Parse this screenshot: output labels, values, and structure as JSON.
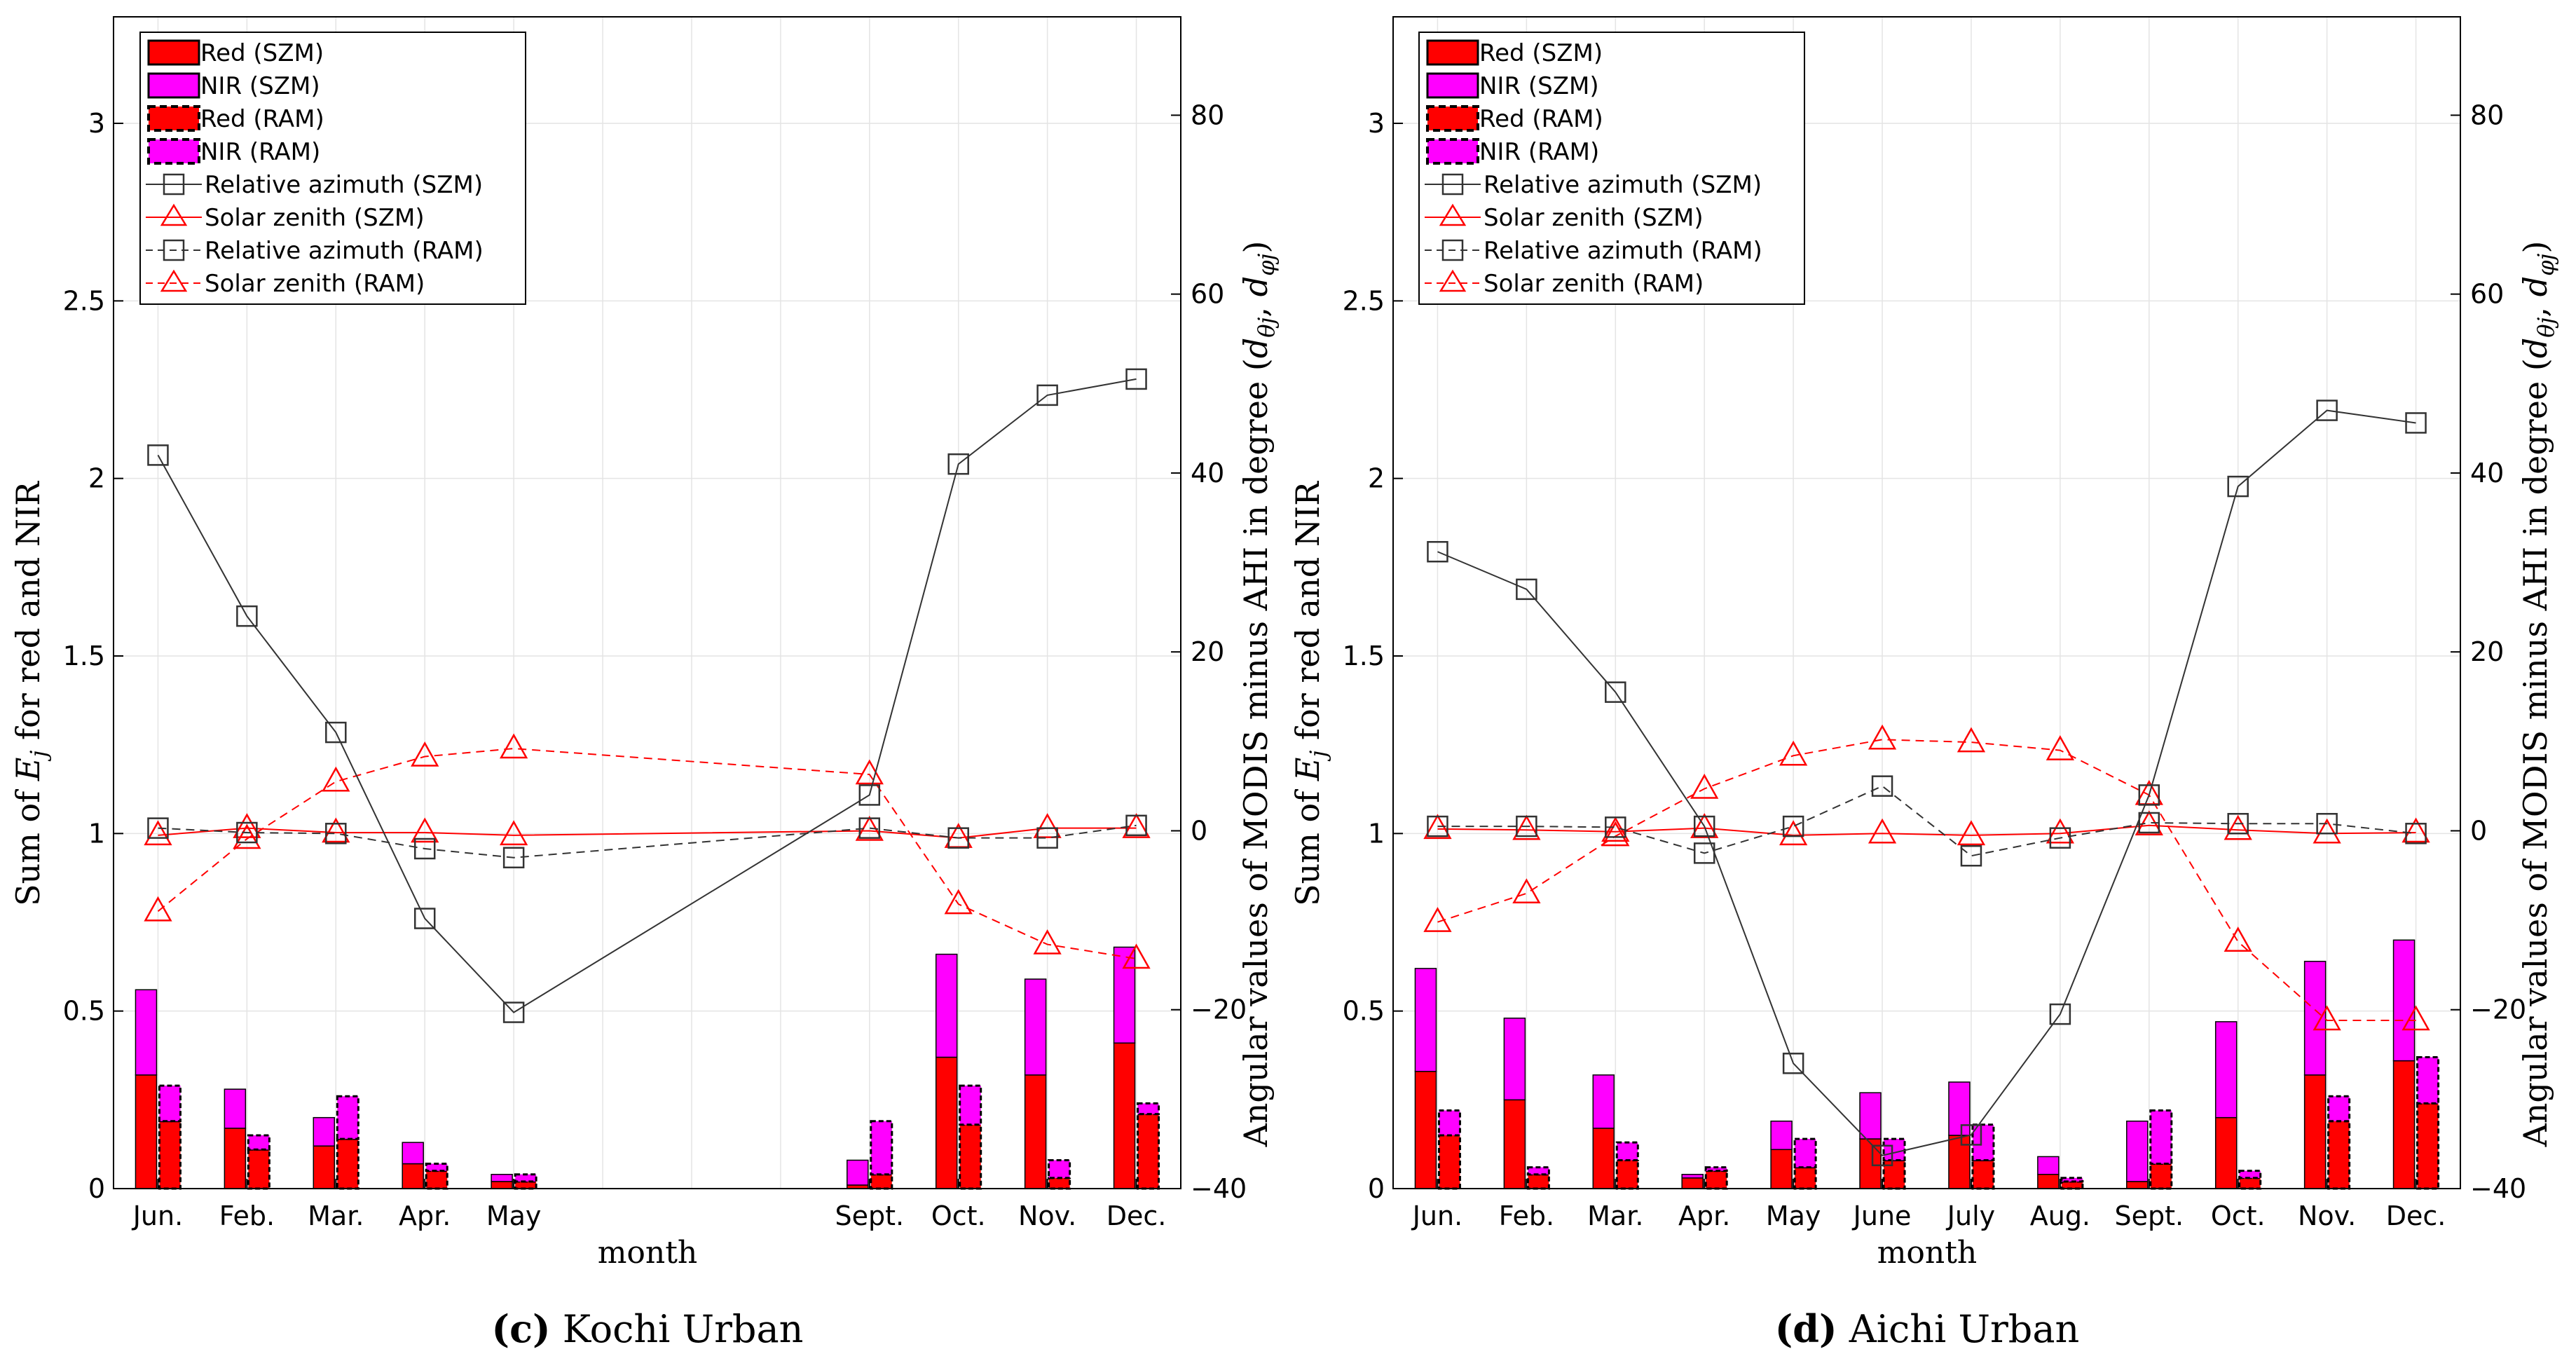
{
  "chart_data": [
    {
      "type": "bar",
      "panel": "left",
      "caption_letter": "(c)",
      "caption_text": "Kochi Urban",
      "xlabel": "month",
      "ylabel_left": "Sum of E_j for red and NIR",
      "ylabel_right": "Angular values of MODIS minus AHI in degree (d_θj, d_φj)",
      "ylim_left": [
        0,
        3.3
      ],
      "ylim_right": [
        -40,
        91
      ],
      "yticks_left": [
        "0",
        "0.5",
        "1",
        "1.5",
        "2",
        "2.5",
        "3"
      ],
      "yticks_right": [
        "-40",
        "-20",
        "0",
        "20",
        "40",
        "60",
        "80"
      ],
      "grid": true,
      "legend_position": "top-left",
      "slots": 12,
      "categories": [
        "Jun.",
        "Feb.",
        "Mar.",
        "Apr.",
        "May",
        "Sept.",
        "Oct.",
        "Nov.",
        "Dec."
      ],
      "category_slots": [
        0,
        1,
        2,
        3,
        4,
        8,
        9,
        10,
        11
      ],
      "series": [
        {
          "name": "Red (SZM)",
          "values": [
            0.32,
            0.17,
            0.12,
            0.07,
            0.02,
            0.01,
            0.37,
            0.32,
            0.41
          ]
        },
        {
          "name": "NIR (SZM)",
          "values": [
            0.24,
            0.11,
            0.08,
            0.06,
            0.02,
            0.07,
            0.29,
            0.27,
            0.27
          ]
        },
        {
          "name": "Red (RAM)",
          "values": [
            0.19,
            0.11,
            0.14,
            0.05,
            0.02,
            0.04,
            0.18,
            0.03,
            0.21
          ]
        },
        {
          "name": "NIR (RAM)",
          "values": [
            0.1,
            0.04,
            0.12,
            0.02,
            0.02,
            0.15,
            0.11,
            0.05,
            0.03
          ]
        }
      ],
      "lines": [
        {
          "name": "Relative azimuth (SZM)",
          "values": [
            42,
            24,
            11,
            -9.8,
            -20.3,
            4,
            41,
            48.7,
            50.5
          ]
        },
        {
          "name": "Solar zenith (SZM)",
          "values": [
            -0.5,
            0.3,
            -0.2,
            -0.2,
            -0.5,
            0,
            -0.8,
            0.3,
            0.3
          ]
        },
        {
          "name": "Relative azimuth (RAM)",
          "values": [
            0.3,
            -0.2,
            -0.3,
            -2.0,
            -3.0,
            0.3,
            -0.8,
            -0.8,
            0.6
          ]
        },
        {
          "name": "Solar zenith (RAM)",
          "values": [
            -9.0,
            -0.9,
            5.5,
            8.3,
            9.2,
            6.3,
            -8.2,
            -12.7,
            -14.3
          ]
        }
      ]
    },
    {
      "type": "bar",
      "panel": "right",
      "caption_letter": "(d)",
      "caption_text": "Aichi Urban",
      "xlabel": "month",
      "ylabel_left": "Sum of E_j for red and NIR",
      "ylabel_right": "Angular values of MODIS minus AHI in degree (d_θj, d_φj)",
      "ylim_left": [
        0,
        3.3
      ],
      "ylim_right": [
        -40,
        91
      ],
      "yticks_left": [
        "0",
        "0.5",
        "1",
        "1.5",
        "2",
        "2.5",
        "3"
      ],
      "yticks_right": [
        "-40",
        "-20",
        "0",
        "20",
        "40",
        "60",
        "80"
      ],
      "grid": true,
      "legend_position": "top-left",
      "slots": 12,
      "categories": [
        "Jun.",
        "Feb.",
        "Mar.",
        "Apr.",
        "May",
        "June",
        "July",
        "Aug.",
        "Sept.",
        "Oct.",
        "Nov.",
        "Dec."
      ],
      "category_slots": [
        0,
        1,
        2,
        3,
        4,
        5,
        6,
        7,
        8,
        9,
        10,
        11
      ],
      "series": [
        {
          "name": "Red (SZM)",
          "values": [
            0.33,
            0.25,
            0.17,
            0.03,
            0.11,
            0.14,
            0.15,
            0.04,
            0.02,
            0.2,
            0.32,
            0.36
          ]
        },
        {
          "name": "NIR (SZM)",
          "values": [
            0.29,
            0.23,
            0.15,
            0.01,
            0.08,
            0.13,
            0.15,
            0.05,
            0.17,
            0.27,
            0.32,
            0.34
          ]
        },
        {
          "name": "Red (RAM)",
          "values": [
            0.15,
            0.04,
            0.08,
            0.05,
            0.06,
            0.08,
            0.08,
            0.02,
            0.07,
            0.03,
            0.19,
            0.24
          ]
        },
        {
          "name": "NIR (RAM)",
          "values": [
            0.07,
            0.02,
            0.05,
            0.01,
            0.08,
            0.06,
            0.1,
            0.01,
            0.15,
            0.02,
            0.07,
            0.13
          ]
        }
      ],
      "lines": [
        {
          "name": "Relative azimuth (SZM)",
          "values": [
            31.2,
            27.0,
            15.5,
            0.5,
            -26.0,
            -36.3,
            -34.0,
            -20.5,
            4.0,
            38.5,
            47.0,
            45.6
          ]
        },
        {
          "name": "Solar zenith (SZM)",
          "values": [
            0.2,
            0.1,
            -0.1,
            0.3,
            -0.5,
            -0.3,
            -0.5,
            -0.3,
            0.6,
            0.1,
            -0.3,
            -0.2
          ]
        },
        {
          "name": "Relative azimuth (RAM)",
          "values": [
            0.5,
            0.5,
            0.4,
            -2.5,
            0.5,
            5.0,
            -2.8,
            -0.8,
            0.9,
            0.8,
            0.8,
            -0.3
          ]
        },
        {
          "name": "Solar zenith (RAM)",
          "values": [
            -10.2,
            -7.0,
            -0.6,
            4.7,
            8.4,
            10.2,
            9.9,
            9.0,
            4.0,
            -12.4,
            -21.2,
            -21.2
          ]
        }
      ]
    }
  ]
}
